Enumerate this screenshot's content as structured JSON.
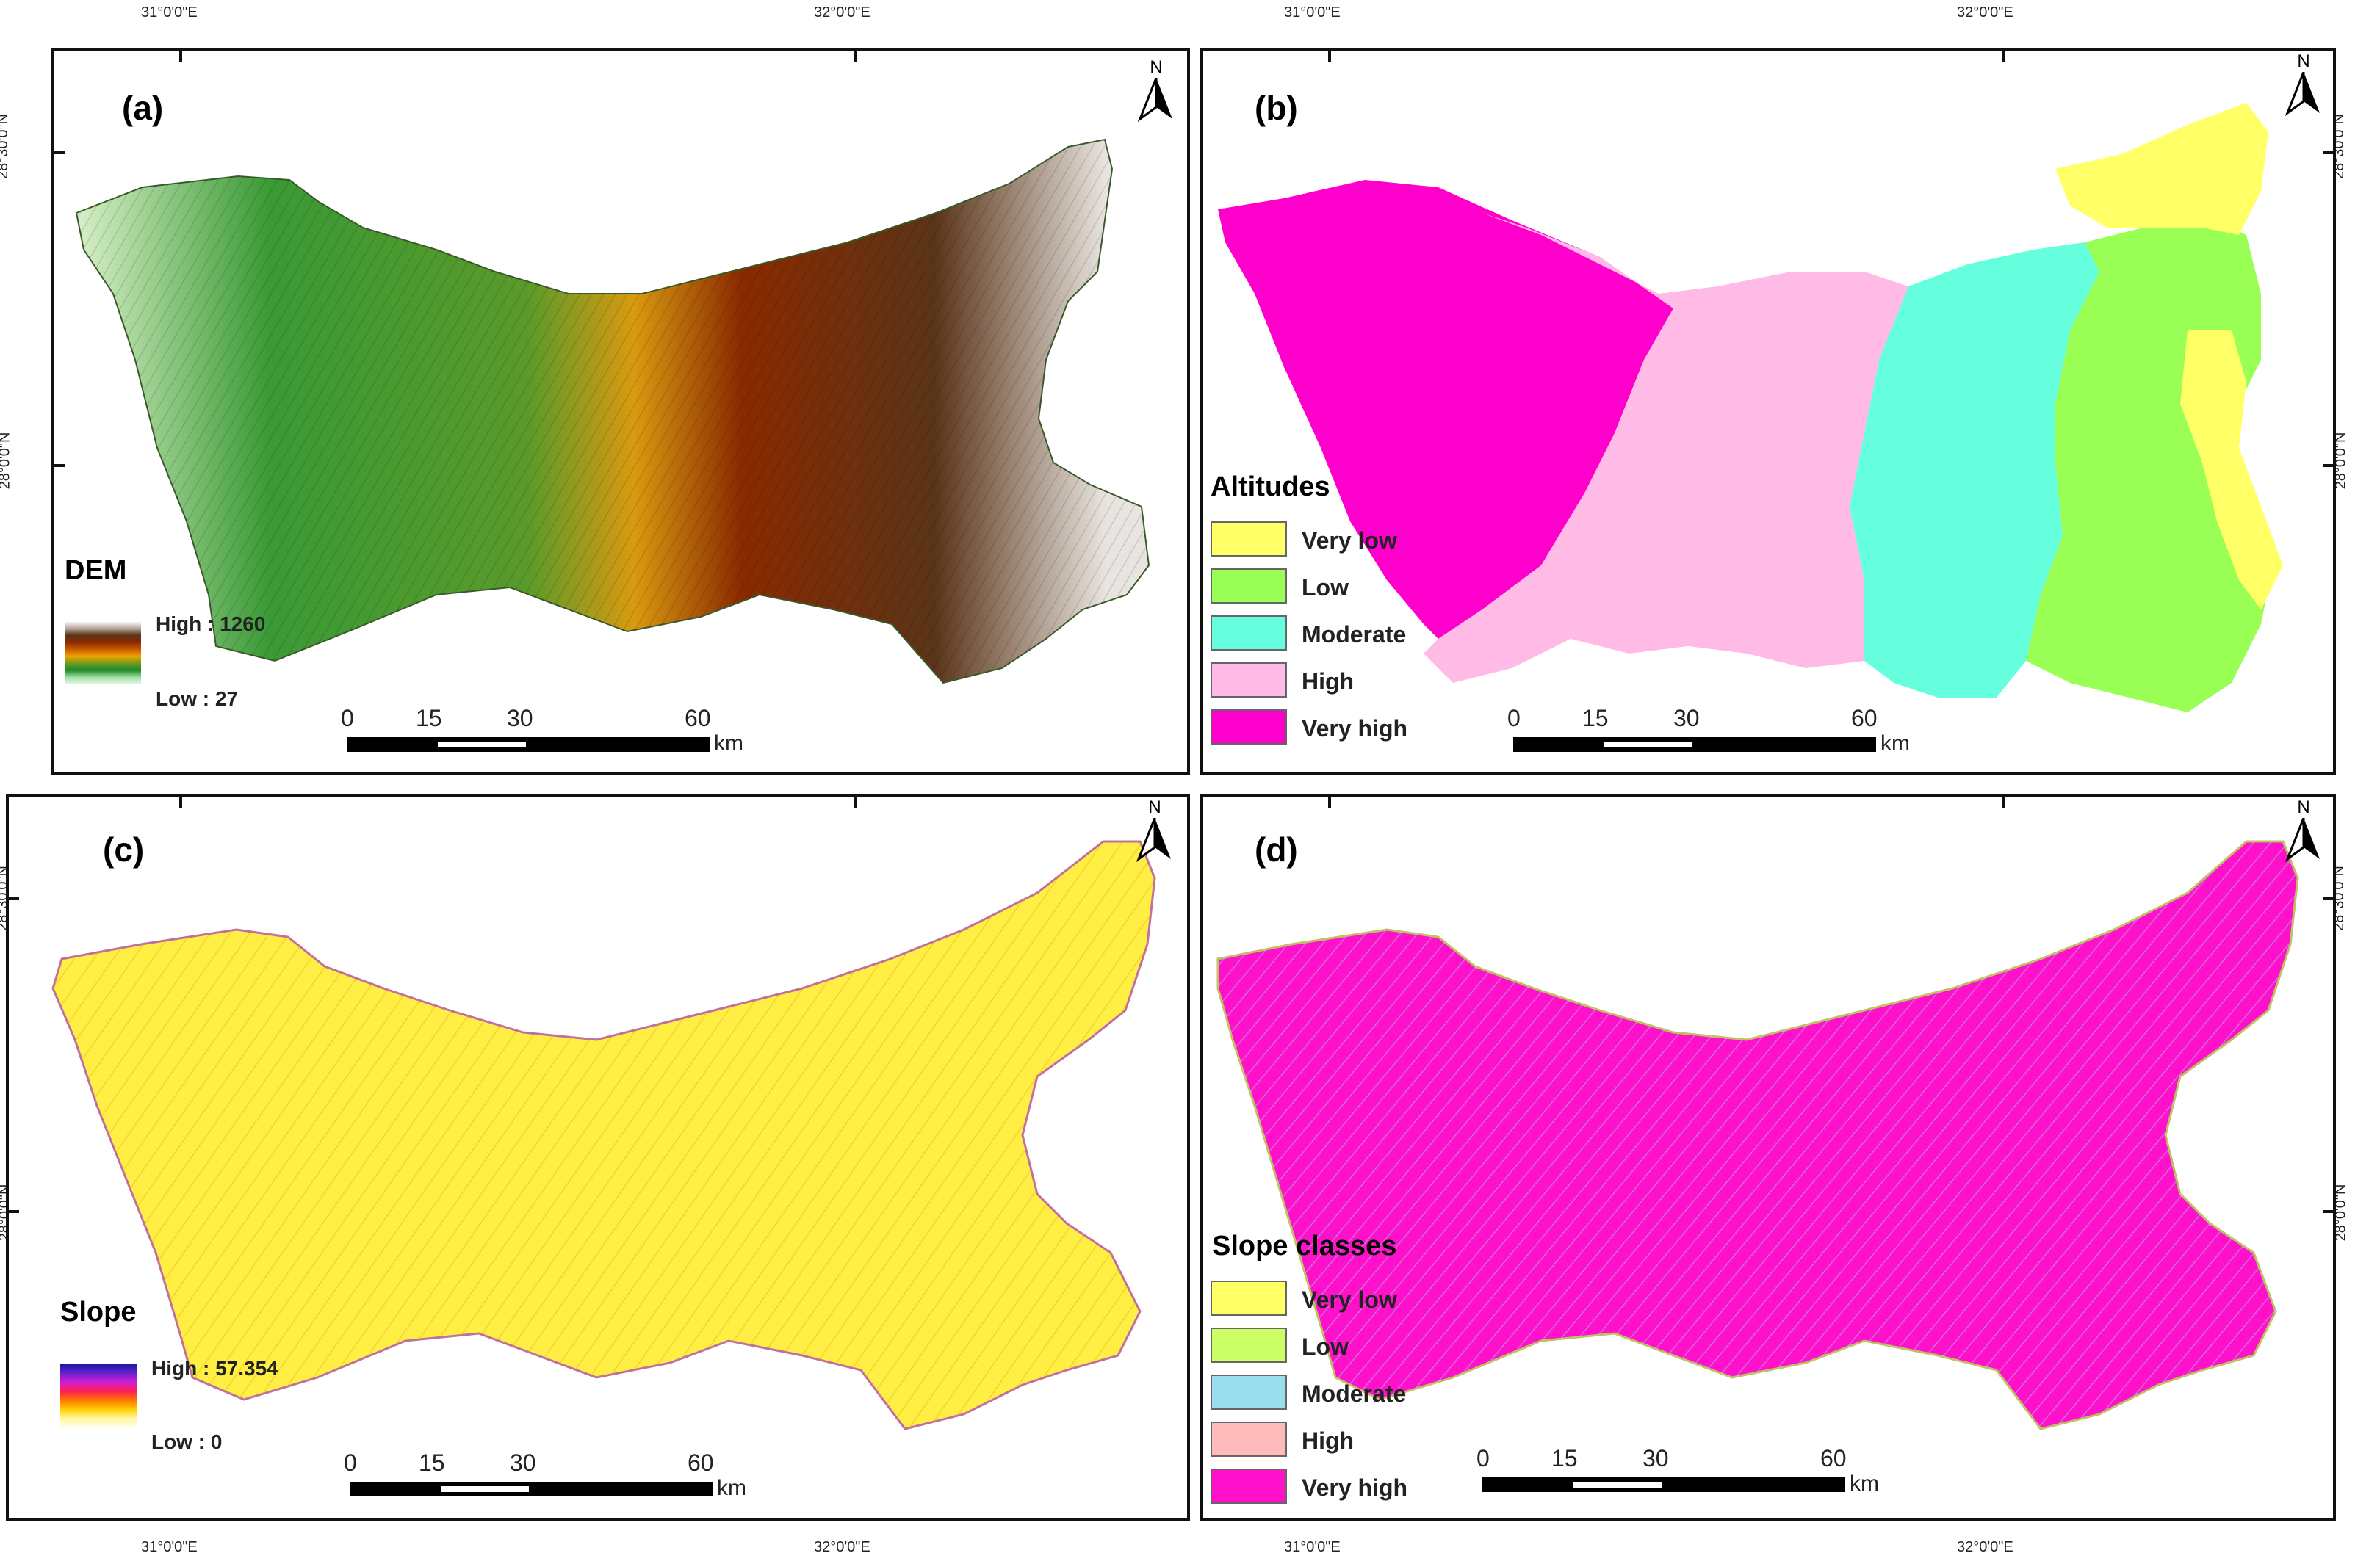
{
  "coords": {
    "lon_left": "31°0'0\"E",
    "lon_right": "32°0'0\"E",
    "lat_top": "28°30'0\"N",
    "lat_mid": "28°0'0\"N"
  },
  "north_label": "N",
  "panels": {
    "a": {
      "label": "(a)",
      "legend_title": "DEM",
      "high_label": "High : 1260",
      "low_label": "Low : 27",
      "ramp_colors": [
        "#ffffff",
        "#b9a99e",
        "#5a3418",
        "#8a2a00",
        "#c95a00",
        "#f0a400",
        "#6e9a1c",
        "#1e8a2e",
        "#a0e0a0",
        "#e8f8ea"
      ]
    },
    "b": {
      "label": "(b)",
      "legend_title": "Altitudes",
      "items": [
        {
          "label": "Very low",
          "color": "#ffff66"
        },
        {
          "label": "Low",
          "color": "#99ff55"
        },
        {
          "label": "Moderate",
          "color": "#66ffdd"
        },
        {
          "label": "High",
          "color": "#ffbbe6"
        },
        {
          "label": "Very high",
          "color": "#ff00cc"
        }
      ]
    },
    "c": {
      "label": "(c)",
      "legend_title": "Slope",
      "high_label": "High : 57.354",
      "low_label": "Low : 0",
      "ramp_colors": [
        "#1a1aa0",
        "#6a1fd0",
        "#d01fd0",
        "#ff2050",
        "#ff7a00",
        "#ffd000",
        "#fff6a0",
        "#fffde8"
      ]
    },
    "d": {
      "label": "(d)",
      "legend_title": "Slope classes",
      "items": [
        {
          "label": "Very low",
          "color": "#ffff66"
        },
        {
          "label": "Low",
          "color": "#ccff66"
        },
        {
          "label": "Moderate",
          "color": "#99ddee"
        },
        {
          "label": "High",
          "color": "#ffbbbb"
        },
        {
          "label": "Very high",
          "color": "#ff11cc"
        }
      ]
    }
  },
  "scalebar": {
    "ticks": [
      "0",
      "15",
      "30",
      "60"
    ],
    "unit": "km"
  }
}
